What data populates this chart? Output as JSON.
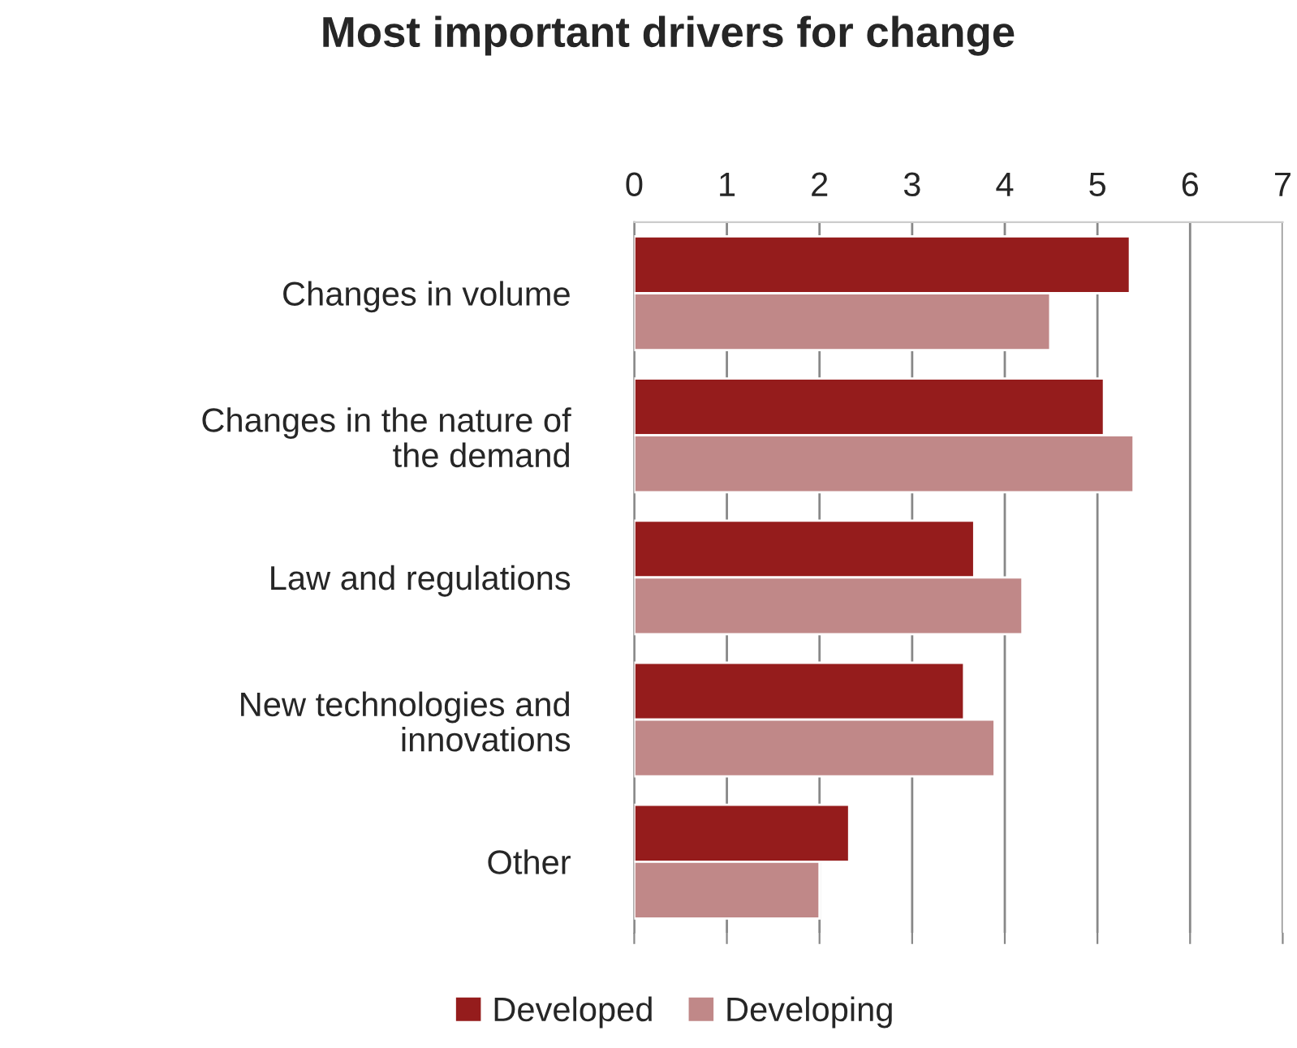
{
  "chart_data": {
    "type": "bar",
    "orientation": "horizontal",
    "title": "Most important drivers for change",
    "categories": [
      "Changes in volume",
      "Changes in the nature of\nthe demand",
      "Law and regulations",
      "New technologies and\ninnovations",
      "Other"
    ],
    "series": [
      {
        "name": "Developed",
        "color": "#951c1c",
        "values": [
          5.35,
          5.07,
          3.67,
          3.56,
          2.32
        ]
      },
      {
        "name": "Developing",
        "color": "#c08888",
        "values": [
          4.49,
          5.39,
          4.19,
          3.89,
          2.0
        ]
      }
    ],
    "xlim": [
      0,
      7
    ],
    "xticks": [
      0,
      1,
      2,
      3,
      4,
      5,
      6,
      7
    ],
    "grid": "x",
    "legend": "bottom"
  }
}
